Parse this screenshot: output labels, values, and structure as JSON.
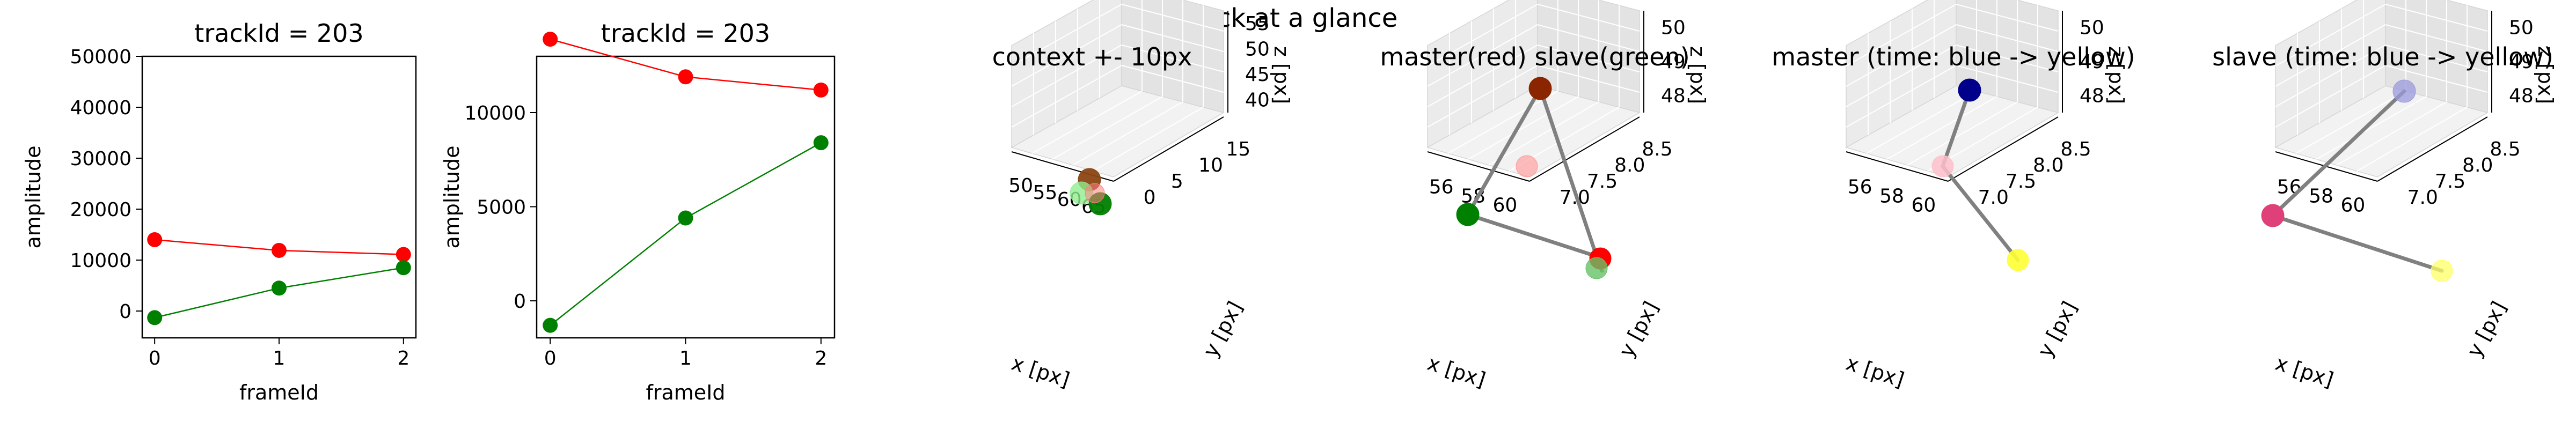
{
  "figure_title": "Track at a glance",
  "colors": {
    "red": "#ff0000",
    "green": "#008000",
    "line": "#808080"
  },
  "chart_data": [
    {
      "type": "line",
      "title": "trackId = 203",
      "xlabel": "frameId",
      "ylabel": "amplitude",
      "xlim": [
        -0.1,
        2.1
      ],
      "ylim": [
        -5000,
        50000
      ],
      "xticks": [
        "0",
        "1",
        "2"
      ],
      "yticks": [
        "0",
        "10000",
        "20000",
        "30000",
        "40000",
        "50000"
      ],
      "x": [
        0,
        1,
        2
      ],
      "series": [
        {
          "color": "#ff0000",
          "values": [
            14000,
            11900,
            11100
          ]
        },
        {
          "color": "#008000",
          "values": [
            -1300,
            4500,
            8500
          ]
        }
      ]
    },
    {
      "type": "line",
      "title": "trackId = 203",
      "xlabel": "frameId",
      "ylabel": "amplitude",
      "xlim": [
        -0.1,
        2.1
      ],
      "ylim": [
        -2200,
        14600
      ],
      "xticks": [
        "0",
        "1",
        "2"
      ],
      "yticks": [
        "0",
        "5000",
        "10000"
      ],
      "x": [
        0,
        1,
        2
      ],
      "series": [
        {
          "color": "#ff0000",
          "values": [
            13900,
            11900,
            11200
          ]
        },
        {
          "color": "#008000",
          "values": [
            -1300,
            4400,
            8400
          ]
        }
      ]
    },
    {
      "type": "scatter",
      "title": "context +- 10px",
      "xlabel": "x [px]",
      "ylabel": "y [px]",
      "zlabel": "z [px]",
      "xticks": [
        "50",
        "55",
        "60",
        "65"
      ],
      "yticks": [
        "0",
        "5",
        "10",
        "15"
      ],
      "zticks": [
        "40",
        "45",
        "50",
        "55"
      ]
    },
    {
      "type": "scatter",
      "title": "master(red) slave(green)",
      "xlabel": "x [px]",
      "ylabel": "y [px]",
      "zlabel": "z [px]",
      "xticks": [
        "56",
        "58",
        "60"
      ],
      "yticks": [
        "7.0",
        "7.5",
        "8.0",
        "8.5"
      ],
      "zticks": [
        "48",
        "49",
        "50"
      ]
    },
    {
      "type": "scatter",
      "title": "master (time: blue -> yellow)",
      "xlabel": "x [px]",
      "ylabel": "y [px]",
      "zlabel": "z [px]",
      "xticks": [
        "56",
        "58",
        "60"
      ],
      "yticks": [
        "7.0",
        "7.5",
        "8.0",
        "8.5"
      ],
      "zticks": [
        "48",
        "49",
        "50"
      ]
    },
    {
      "type": "scatter",
      "title": "slave (time: blue -> yellow)",
      "xlabel": "x [px]",
      "ylabel": "y [px]",
      "zlabel": "z [px]",
      "xticks": [
        "56",
        "58",
        "60"
      ],
      "yticks": [
        "7.0",
        "7.5",
        "8.0",
        "8.5"
      ],
      "zticks": [
        "48",
        "49",
        "50"
      ]
    }
  ]
}
